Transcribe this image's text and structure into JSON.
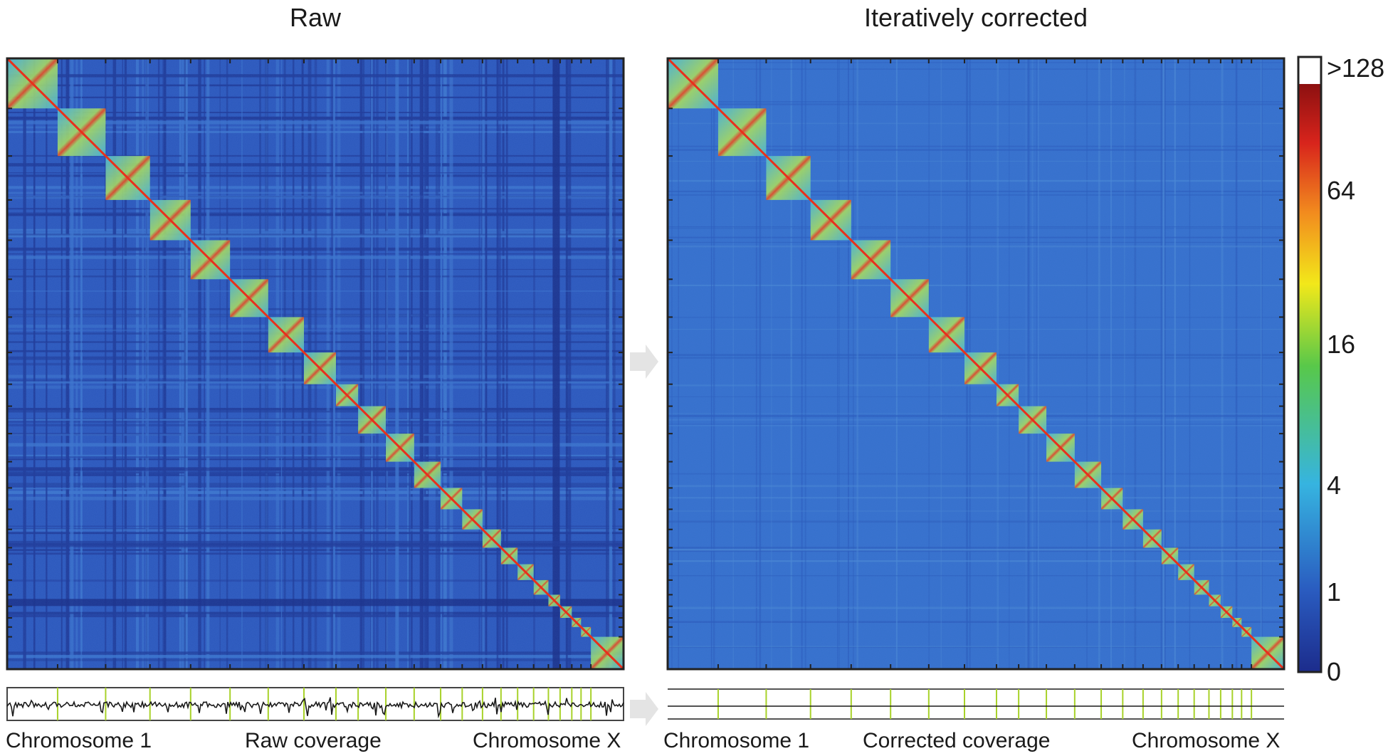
{
  "panels": [
    {
      "title": "Raw",
      "track_left": "Chromosome 1",
      "track_center": "Raw coverage",
      "track_right": "Chromosome X"
    },
    {
      "title": "Iteratively corrected",
      "track_left": "Chromosome 1",
      "track_center": "Corrected coverage",
      "track_right": "Chromosome X"
    }
  ],
  "colorbar": {
    "ticks": [
      ">128",
      "64",
      "16",
      "4",
      "1",
      "0"
    ],
    "tick_values": [
      128,
      64,
      16,
      4,
      1,
      0
    ],
    "colormap": "jet",
    "overflow_color": "#ffffff",
    "colors": [
      "#1c2c8c",
      "#2a5cc0",
      "#36b4e0",
      "#58c84a",
      "#f2e81a",
      "#f28c1e",
      "#d8241c",
      "#8c1010"
    ]
  },
  "chart_data": [
    {
      "type": "heatmap",
      "title": "Raw",
      "description_values": "chromosome-by-chromosome contact matrix",
      "chromosome_fractions": [
        0.082,
        0.078,
        0.072,
        0.066,
        0.064,
        0.062,
        0.058,
        0.052,
        0.036,
        0.045,
        0.046,
        0.043,
        0.035,
        0.033,
        0.03,
        0.027,
        0.026,
        0.024,
        0.019,
        0.019,
        0.015,
        0.016,
        0.053
      ],
      "chromosomes_first_last": [
        "Chromosome 1",
        "Chromosome X"
      ],
      "coverage": "Raw coverage",
      "color_scale": [
        0,
        1,
        4,
        16,
        64,
        128
      ]
    },
    {
      "type": "heatmap",
      "title": "Iteratively corrected",
      "chromosome_fractions": [
        0.082,
        0.078,
        0.072,
        0.066,
        0.064,
        0.062,
        0.058,
        0.052,
        0.036,
        0.045,
        0.046,
        0.043,
        0.035,
        0.033,
        0.03,
        0.027,
        0.026,
        0.024,
        0.019,
        0.019,
        0.015,
        0.016,
        0.053
      ],
      "chromosomes_first_last": [
        "Chromosome 1",
        "Chromosome X"
      ],
      "coverage": "Corrected coverage",
      "color_scale": [
        0,
        1,
        4,
        16,
        64,
        128
      ]
    }
  ]
}
